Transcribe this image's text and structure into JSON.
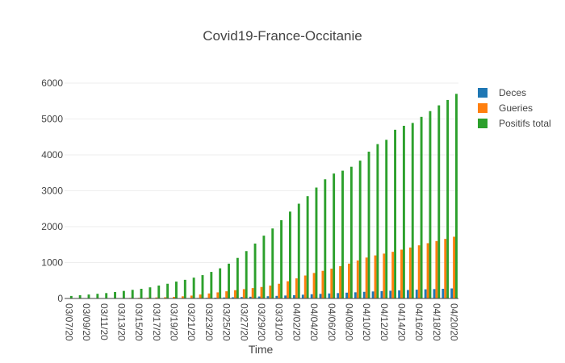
{
  "chart_data": {
    "type": "bar",
    "title": "Covid19-France-Occitanie",
    "xlabel": "Time",
    "ylabel": "",
    "ylim": [
      0,
      6000
    ],
    "yticks": [
      0,
      1000,
      2000,
      3000,
      4000,
      5000,
      6000
    ],
    "grid": true,
    "legend_position": "top-right",
    "categories": [
      "03/07/20",
      "03/08/20",
      "03/09/20",
      "03/10/20",
      "03/11/20",
      "03/12/20",
      "03/13/20",
      "03/14/20",
      "03/15/20",
      "03/16/20",
      "03/17/20",
      "03/18/20",
      "03/19/20",
      "03/20/20",
      "03/21/20",
      "03/22/20",
      "03/23/20",
      "03/24/20",
      "03/25/20",
      "03/26/20",
      "03/27/20",
      "03/28/20",
      "03/29/20",
      "03/30/20",
      "03/31/20",
      "04/01/20",
      "04/02/20",
      "04/03/20",
      "04/04/20",
      "04/05/20",
      "04/06/20",
      "04/07/20",
      "04/08/20",
      "04/09/20",
      "04/10/20",
      "04/11/20",
      "04/12/20",
      "04/13/20",
      "04/14/20",
      "04/15/20",
      "04/16/20",
      "04/17/20",
      "04/18/20",
      "04/19/20",
      "04/20/20"
    ],
    "xtick_labels": [
      "03/07/20",
      "03/09/20",
      "03/11/20",
      "03/13/20",
      "03/15/20",
      "03/17/20",
      "03/19/20",
      "03/21/20",
      "03/23/20",
      "03/25/20",
      "03/27/20",
      "03/29/20",
      "03/31/20",
      "04/02/20",
      "04/04/20",
      "04/06/20",
      "04/08/20",
      "04/10/20",
      "04/12/20",
      "04/14/20",
      "04/16/20",
      "04/18/20",
      "04/20/20"
    ],
    "series": [
      {
        "name": "Deces",
        "color": "#1f77b4",
        "values": [
          0,
          0,
          1,
          1,
          1,
          2,
          2,
          3,
          3,
          4,
          5,
          6,
          8,
          10,
          12,
          15,
          18,
          22,
          28,
          33,
          40,
          48,
          55,
          63,
          72,
          82,
          92,
          105,
          118,
          128,
          140,
          150,
          162,
          172,
          185,
          195,
          205,
          215,
          225,
          235,
          245,
          255,
          262,
          270,
          280
        ]
      },
      {
        "name": "Gueries",
        "color": "#ff7f0e",
        "values": [
          2,
          3,
          5,
          6,
          8,
          10,
          12,
          15,
          18,
          22,
          28,
          35,
          45,
          60,
          80,
          110,
          140,
          170,
          200,
          230,
          260,
          290,
          320,
          360,
          410,
          480,
          560,
          640,
          710,
          770,
          830,
          900,
          970,
          1060,
          1140,
          1200,
          1250,
          1300,
          1360,
          1420,
          1480,
          1540,
          1600,
          1660,
          1720
        ]
      },
      {
        "name": "Positifs total",
        "color": "#2ca02c",
        "values": [
          70,
          90,
          110,
          130,
          150,
          180,
          210,
          240,
          270,
          310,
          360,
          410,
          470,
          520,
          580,
          650,
          740,
          840,
          970,
          1130,
          1320,
          1530,
          1750,
          1950,
          2180,
          2420,
          2640,
          2850,
          3090,
          3320,
          3480,
          3560,
          3670,
          3840,
          4090,
          4300,
          4420,
          4700,
          4810,
          4890,
          5060,
          5220,
          5380,
          5530,
          5700
        ]
      }
    ]
  }
}
